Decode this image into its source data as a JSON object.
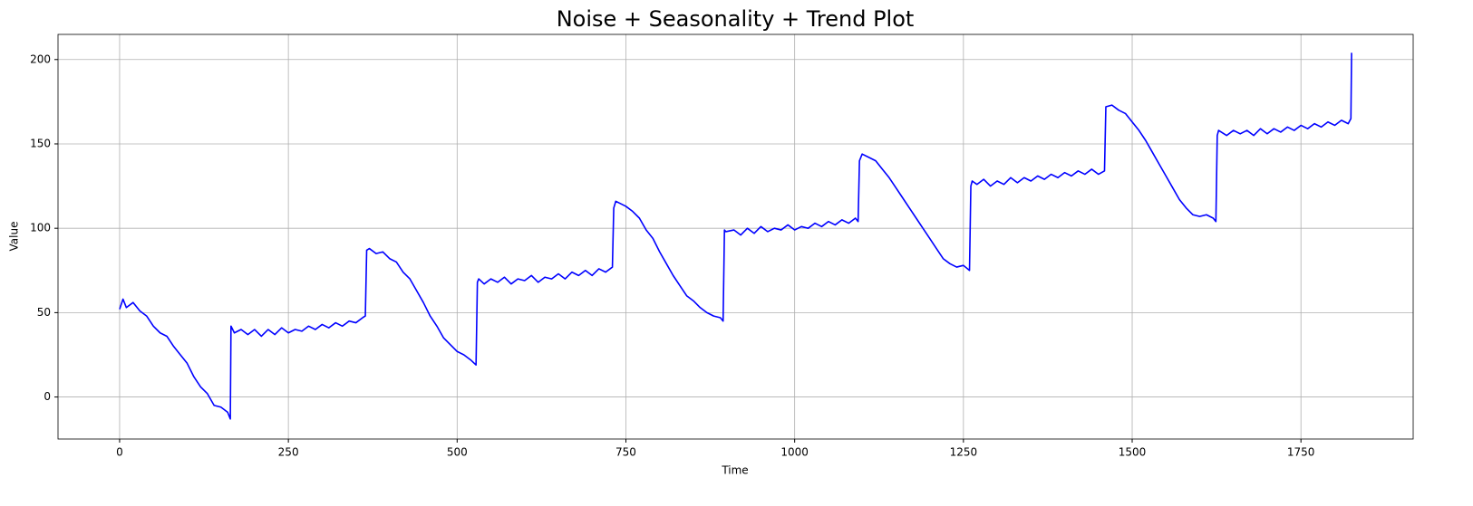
{
  "chart_data": {
    "type": "line",
    "title": "Noise + Seasonality + Trend Plot",
    "x_label": "Time",
    "y_label": "Value",
    "color": "#0000ff",
    "grid": true,
    "x": [
      0,
      5,
      10,
      20,
      30,
      40,
      50,
      60,
      70,
      80,
      90,
      100,
      110,
      120,
      130,
      140,
      150,
      160,
      164,
      165,
      170,
      180,
      190,
      200,
      210,
      220,
      230,
      240,
      250,
      260,
      270,
      280,
      290,
      300,
      310,
      320,
      330,
      340,
      350,
      360,
      364,
      366,
      370,
      380,
      390,
      400,
      410,
      420,
      430,
      440,
      450,
      460,
      470,
      480,
      490,
      500,
      510,
      520,
      528,
      530,
      532,
      540,
      550,
      560,
      570,
      580,
      590,
      600,
      610,
      620,
      630,
      640,
      650,
      660,
      670,
      680,
      690,
      700,
      710,
      720,
      730,
      732,
      735,
      740,
      750,
      760,
      770,
      780,
      790,
      800,
      810,
      820,
      830,
      840,
      850,
      860,
      870,
      880,
      890,
      894,
      896,
      898,
      910,
      920,
      930,
      940,
      950,
      960,
      970,
      980,
      990,
      1000,
      1010,
      1020,
      1030,
      1040,
      1050,
      1060,
      1070,
      1080,
      1090,
      1094,
      1096,
      1100,
      1110,
      1120,
      1130,
      1140,
      1150,
      1160,
      1170,
      1180,
      1190,
      1200,
      1210,
      1220,
      1230,
      1240,
      1250,
      1259,
      1261,
      1263,
      1270,
      1280,
      1290,
      1300,
      1310,
      1320,
      1330,
      1340,
      1350,
      1360,
      1370,
      1380,
      1390,
      1400,
      1410,
      1420,
      1430,
      1440,
      1450,
      1459,
      1461,
      1470,
      1480,
      1490,
      1500,
      1510,
      1520,
      1530,
      1540,
      1550,
      1560,
      1570,
      1580,
      1590,
      1600,
      1610,
      1620,
      1624,
      1626,
      1628,
      1640,
      1650,
      1660,
      1670,
      1680,
      1690,
      1700,
      1710,
      1720,
      1730,
      1740,
      1750,
      1760,
      1770,
      1780,
      1790,
      1800,
      1810,
      1820,
      1824,
      1825
    ],
    "values": [
      52,
      58,
      53,
      56,
      51,
      48,
      42,
      38,
      36,
      30,
      25,
      20,
      12,
      6,
      2,
      -5,
      -6,
      -9,
      -13,
      42,
      38,
      40,
      37,
      40,
      36,
      40,
      37,
      41,
      38,
      40,
      39,
      42,
      40,
      43,
      41,
      44,
      42,
      45,
      44,
      47,
      48,
      87,
      88,
      85,
      86,
      82,
      80,
      74,
      70,
      63,
      56,
      48,
      42,
      35,
      31,
      27,
      25,
      22,
      19,
      68,
      70,
      67,
      70,
      68,
      71,
      67,
      70,
      69,
      72,
      68,
      71,
      70,
      73,
      70,
      74,
      72,
      75,
      72,
      76,
      74,
      77,
      112,
      116,
      115,
      113,
      110,
      106,
      99,
      94,
      86,
      79,
      72,
      66,
      60,
      57,
      53,
      50,
      48,
      47,
      45,
      99,
      98,
      99,
      96,
      100,
      97,
      101,
      98,
      100,
      99,
      102,
      99,
      101,
      100,
      103,
      101,
      104,
      102,
      105,
      103,
      106,
      104,
      140,
      144,
      142,
      140,
      135,
      130,
      124,
      118,
      112,
      106,
      100,
      94,
      88,
      82,
      79,
      77,
      78,
      75,
      125,
      128,
      126,
      129,
      125,
      128,
      126,
      130,
      127,
      130,
      128,
      131,
      129,
      132,
      130,
      133,
      131,
      134,
      132,
      135,
      132,
      134,
      172,
      173,
      170,
      168,
      163,
      158,
      152,
      145,
      138,
      131,
      124,
      117,
      112,
      108,
      107,
      108,
      106,
      104,
      155,
      158,
      155,
      158,
      156,
      158,
      155,
      159,
      156,
      159,
      157,
      160,
      158,
      161,
      159,
      162,
      160,
      163,
      161,
      164,
      162,
      165,
      204
    ],
    "xlim": [
      -91.25,
      1916.25
    ],
    "xticks": [
      0,
      250,
      500,
      750,
      1000,
      1250,
      1500,
      1750
    ],
    "ylim": [
      -24.9,
      214.9
    ],
    "yticks": [
      0,
      50,
      100,
      150,
      200
    ]
  }
}
